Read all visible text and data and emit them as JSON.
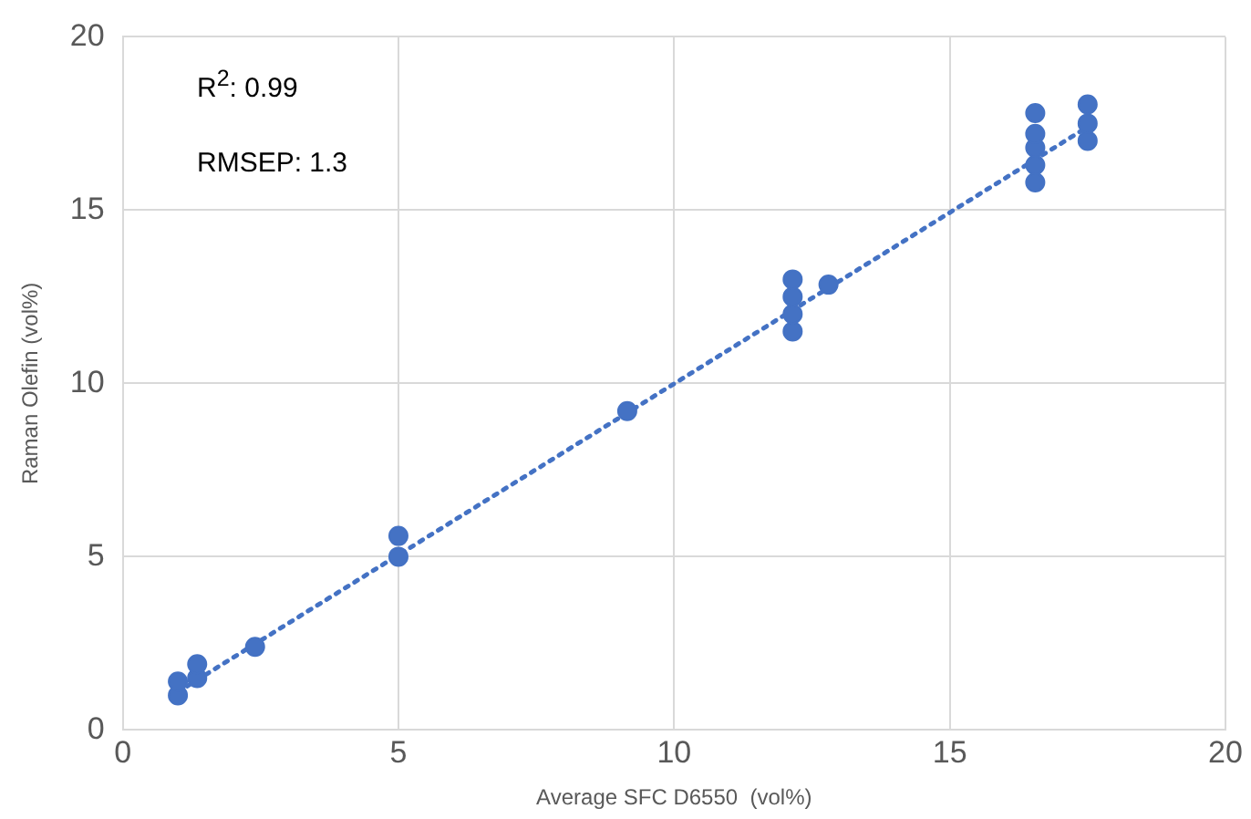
{
  "chart_data": {
    "type": "scatter",
    "xlabel": "Average SFC D6550  (vol%)",
    "ylabel": "Raman Olefin (vol%)",
    "annotations": [
      "R$^{2}$: 0.99",
      "RMSEP: 1.3"
    ],
    "xlim": [
      0,
      20
    ],
    "ylim": [
      0,
      20
    ],
    "xticks": [
      0,
      5,
      10,
      15,
      20
    ],
    "yticks": [
      0,
      5,
      10,
      15,
      20
    ],
    "grid": true,
    "marker": "circle",
    "series": [
      {
        "color": "#4472c4",
        "x": [
          1.0,
          1.0,
          1.35,
          1.35,
          2.4,
          5.0,
          5.0,
          9.15,
          12.15,
          12.15,
          12.15,
          12.15,
          12.8,
          16.55,
          16.55,
          16.55,
          16.55,
          16.55,
          17.5,
          17.5,
          17.5
        ],
        "values": [
          1.0,
          1.4,
          1.5,
          1.9,
          2.4,
          5.0,
          5.6,
          9.2,
          11.5,
          12.0,
          12.5,
          13.0,
          12.85,
          15.8,
          16.3,
          16.8,
          17.2,
          17.8,
          17.0,
          17.5,
          18.05
        ]
      },
      {
        "type": "line",
        "color": "#4472c4",
        "line_style": "dotted",
        "marker": "none",
        "x": [
          1.0,
          17.5
        ],
        "values": [
          1.1,
          17.4
        ]
      }
    ]
  }
}
